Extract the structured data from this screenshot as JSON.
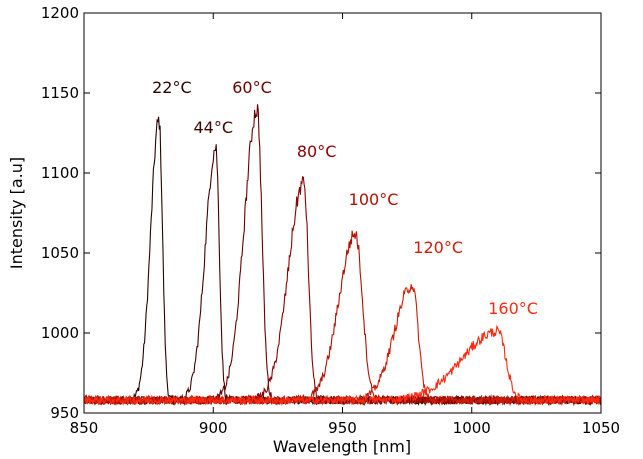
{
  "chart_data": {
    "type": "line",
    "title": "",
    "xlabel": "Wavelength [nm]",
    "ylabel": "Intensity [a.u]",
    "xlim": [
      850,
      1050
    ],
    "ylim": [
      950,
      1200
    ],
    "xticks": [
      850,
      900,
      950,
      1000,
      1050
    ],
    "yticks": [
      950,
      1000,
      1050,
      1100,
      1150,
      1200
    ],
    "grid": false,
    "legend": "none",
    "baseline": 958,
    "series": [
      {
        "name": "22°C",
        "color": "#2a0000",
        "peak_x": 879,
        "peak_y": 1133,
        "left_width": 7,
        "right_width": 3,
        "label_x": 884,
        "label_y": 1150
      },
      {
        "name": "44°C",
        "color": "#440000",
        "peak_x": 901,
        "peak_y": 1116,
        "left_width": 9,
        "right_width": 3,
        "label_x": 900,
        "label_y": 1125
      },
      {
        "name": "60°C",
        "color": "#660000",
        "peak_x": 917,
        "peak_y": 1140,
        "left_width": 11,
        "right_width": 4,
        "label_x": 915,
        "label_y": 1150
      },
      {
        "name": "80°C",
        "color": "#8b0000",
        "peak_x": 935,
        "peak_y": 1094,
        "left_width": 13,
        "right_width": 4,
        "label_x": 940,
        "label_y": 1110
      },
      {
        "name": "100°C",
        "color": "#b01000",
        "peak_x": 955,
        "peak_y": 1062,
        "left_width": 14,
        "right_width": 6,
        "label_x": 962,
        "label_y": 1080
      },
      {
        "name": "120°C",
        "color": "#d01c08",
        "peak_x": 977,
        "peak_y": 1030,
        "left_width": 15,
        "right_width": 5,
        "label_x": 987,
        "label_y": 1050
      },
      {
        "name": "160°C",
        "color": "#ff2a10",
        "peak_x": 1010,
        "peak_y": 1001,
        "left_width": 30,
        "right_width": 7,
        "label_x": 1016,
        "label_y": 1012
      }
    ]
  }
}
